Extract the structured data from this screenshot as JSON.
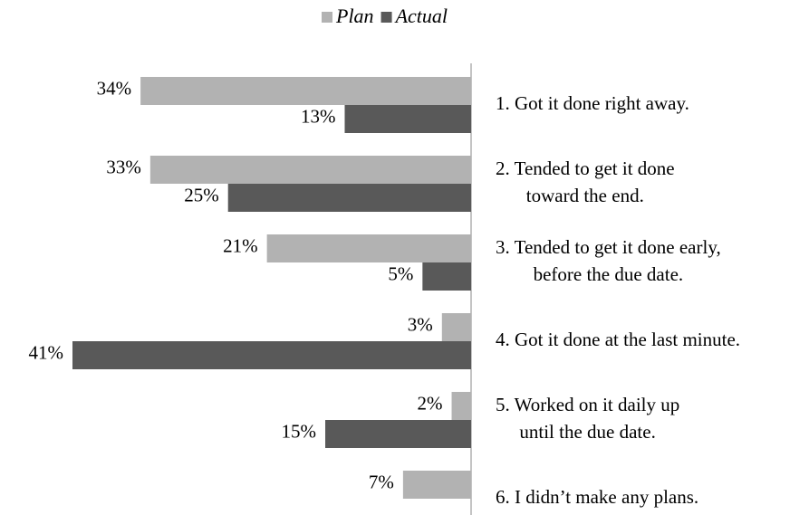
{
  "chart_data": {
    "type": "bar",
    "orientation": "horizontal",
    "categories": [
      [
        "1. Got it done right away."
      ],
      [
        "2. Tended to get it done",
        "toward the end."
      ],
      [
        "3. Tended to get it done early,",
        "before the due date."
      ],
      [
        "4. Got it done at the last minute."
      ],
      [
        "5. Worked on it daily up",
        "until the due date."
      ],
      [
        "6. I didn’t make any plans."
      ]
    ],
    "series": [
      {
        "name": "Plan",
        "color": "#b2b2b2",
        "values": [
          34,
          33,
          21,
          3,
          2,
          7
        ],
        "value_labels": [
          "34%",
          "33%",
          "21%",
          "3%",
          "2%",
          "7%"
        ]
      },
      {
        "name": "Actual",
        "color": "#595959",
        "values": [
          13,
          25,
          5,
          41,
          15,
          null
        ],
        "value_labels": [
          "13%",
          "25%",
          "5%",
          "41%",
          "15%",
          null
        ]
      }
    ]
  }
}
